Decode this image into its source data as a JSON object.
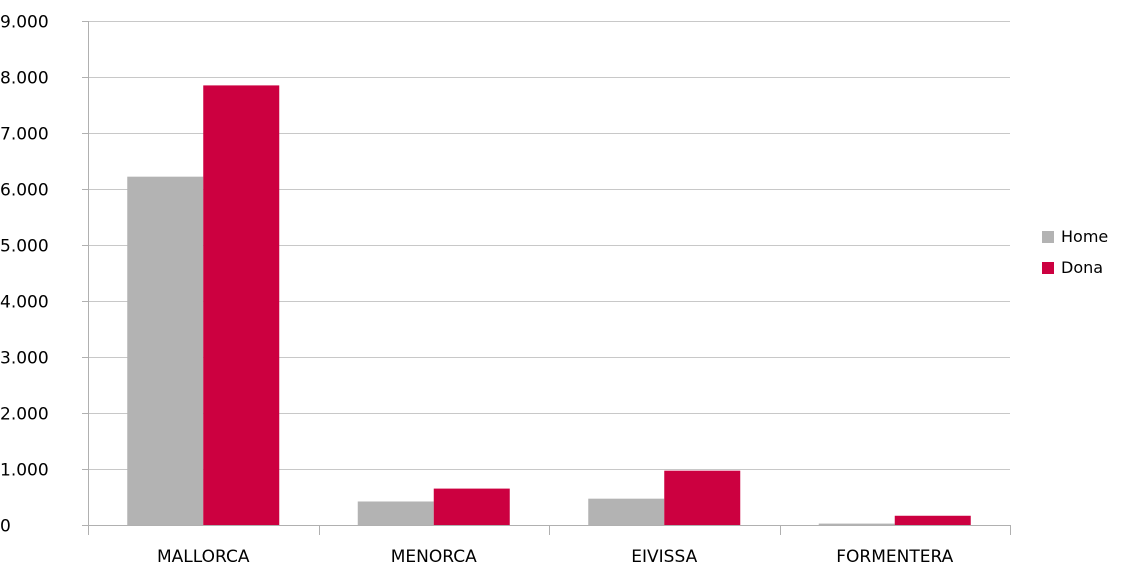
{
  "chart_data": {
    "type": "bar",
    "categories": [
      "MALLORCA",
      "MENORCA",
      "EIVISSA",
      "FORMENTERA"
    ],
    "series": [
      {
        "name": "Home",
        "values": [
          6220,
          420,
          470,
          25
        ],
        "color": "#b3b3b3"
      },
      {
        "name": "Dona",
        "values": [
          7850,
          650,
          970,
          165
        ],
        "color": "#cc0040"
      }
    ],
    "ylim": [
      0,
      9000
    ],
    "yticks": [
      0,
      1000,
      2000,
      3000,
      4000,
      5000,
      6000,
      7000,
      8000,
      9000
    ],
    "ytick_labels": [
      "0",
      "1.000",
      "2.000",
      "3.000",
      "4.000",
      "5.000",
      "6.000",
      "7.000",
      "8.000",
      "9.000"
    ],
    "grid": true,
    "legend_position": "right",
    "title": "",
    "xlabel": "",
    "ylabel": ""
  }
}
